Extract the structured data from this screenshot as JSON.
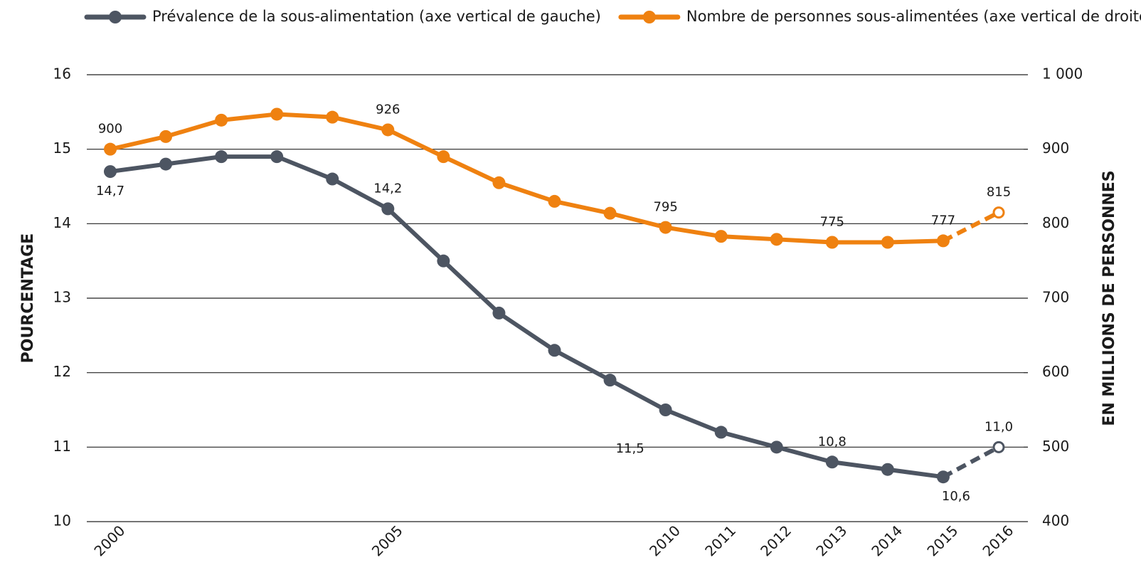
{
  "chart_data": {
    "type": "line",
    "categories": [
      "2000",
      null,
      null,
      null,
      null,
      "2005",
      null,
      null,
      null,
      null,
      "2010",
      "2011",
      "2012",
      "2013",
      "2014",
      "2015",
      "2016"
    ],
    "y_label": "POURCENTAGE",
    "y2_label": "EN MILLIONS DE PERSONNES",
    "ylim": [
      10,
      16
    ],
    "yticks": [
      10,
      11,
      12,
      13,
      14,
      15,
      16
    ],
    "y2lim": [
      400,
      1000
    ],
    "y2ticks": [
      400,
      500,
      600,
      700,
      800,
      900,
      {
        "value": 1000,
        "label": "1 000"
      }
    ],
    "grid": true,
    "legend": "top",
    "series": [
      {
        "name": "Prévalence de la sous-alimentation (axe vertical de gauche)",
        "color": "#4d5562",
        "dashed_last": true,
        "values": [
          14.7,
          14.8,
          14.9,
          14.9,
          14.6,
          14.2,
          13.5,
          12.8,
          12.3,
          11.9,
          11.5,
          11.2,
          11.0,
          10.8,
          10.7,
          10.6,
          11.0
        ],
        "value_labels": [
          "14,7",
          null,
          null,
          null,
          null,
          "14,2",
          null,
          null,
          null,
          null,
          "11,5",
          null,
          null,
          "10,8",
          null,
          "10,6",
          "11,0"
        ]
      },
      {
        "name": "Nombre de personnes sous-alimentées (axe vertical de droite)",
        "color": "#ef8110",
        "axis": "y2",
        "dashed_last": true,
        "values": [
          900,
          917,
          939,
          947,
          943,
          926,
          890,
          855,
          830,
          814,
          795,
          783,
          779,
          775,
          775,
          777,
          815
        ],
        "value_labels": [
          "900",
          null,
          null,
          null,
          null,
          "926",
          null,
          null,
          null,
          null,
          "795",
          null,
          null,
          "775",
          null,
          "777",
          "815"
        ]
      }
    ]
  }
}
